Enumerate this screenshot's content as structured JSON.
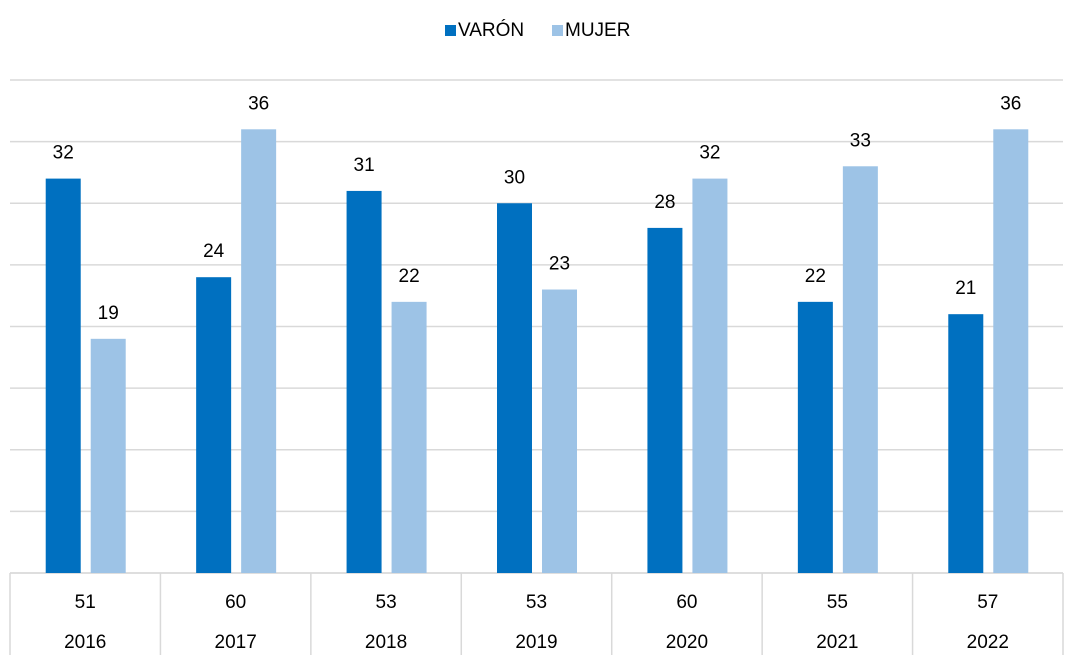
{
  "chart_data": {
    "type": "bar",
    "categories": [
      "2016",
      "2017",
      "2018",
      "2019",
      "2020",
      "2021",
      "2022"
    ],
    "series": [
      {
        "name": "VARÓN",
        "color": "#0070c0",
        "values": [
          32,
          24,
          31,
          30,
          28,
          22,
          21
        ]
      },
      {
        "name": "MUJER",
        "color": "#9dc3e6",
        "values": [
          19,
          36,
          22,
          23,
          32,
          33,
          36
        ]
      }
    ],
    "totals": [
      51,
      60,
      53,
      53,
      60,
      55,
      57
    ],
    "ylim": [
      0,
      40
    ],
    "yticks": [
      0,
      5,
      10,
      15,
      20,
      25,
      30,
      35,
      40
    ],
    "grid": true,
    "legend": "top"
  }
}
